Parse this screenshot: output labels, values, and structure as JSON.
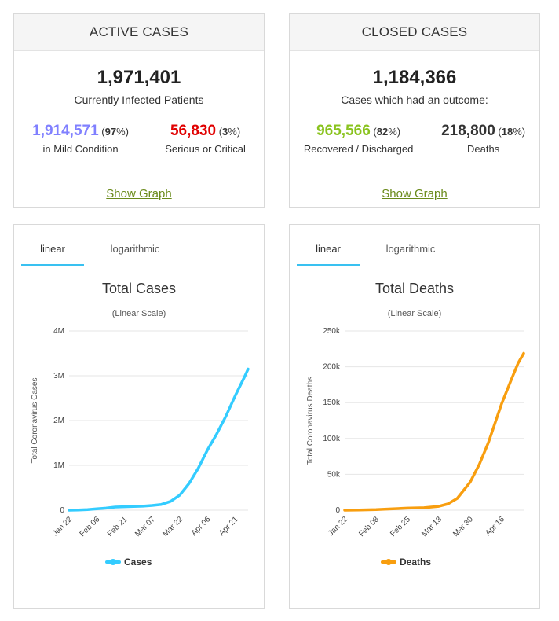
{
  "active": {
    "header": "ACTIVE CASES",
    "total": "1,971,401",
    "caption": "Currently Infected Patients",
    "mild": {
      "number": "1,914,571",
      "pct": "97",
      "caption": "in Mild Condition",
      "color": "#8080ff"
    },
    "serious": {
      "number": "56,830",
      "pct": "3",
      "caption": "Serious or Critical",
      "color": "#e00000"
    },
    "show_graph": "Show Graph"
  },
  "closed": {
    "header": "CLOSED CASES",
    "total": "1,184,366",
    "caption": "Cases which had an outcome:",
    "recovered": {
      "number": "965,566",
      "pct": "82",
      "caption": "Recovered / Discharged",
      "color": "#8ac31f"
    },
    "deaths": {
      "number": "218,800",
      "pct": "18",
      "caption": "Deaths",
      "color": "#333333"
    },
    "show_graph": "Show Graph"
  },
  "tabs": {
    "linear": "linear",
    "logarithmic": "logarithmic"
  },
  "colors": {
    "cases": "#33ccff",
    "deaths": "#f89e0f",
    "tab_active": "#39c1f1",
    "link": "#6a8a1a"
  },
  "chart_data": [
    {
      "type": "line",
      "title": "Total Cases",
      "subtitle": "(Linear Scale)",
      "ylabel": "Total Coronavirus Cases",
      "ylim": [
        0,
        4000000
      ],
      "yticks": [
        0,
        1000000,
        2000000,
        3000000,
        4000000
      ],
      "ytick_labels": [
        "0",
        "1M",
        "2M",
        "3M",
        "4M"
      ],
      "xtick_labels": [
        "Jan 22",
        "Feb 06",
        "Feb 21",
        "Mar 07",
        "Mar 22",
        "Apr 06",
        "Apr 21"
      ],
      "legend": "bottom-center",
      "series": [
        {
          "name": "Cases",
          "color": "#33ccff",
          "x": [
            "Jan 22",
            "Jan 27",
            "Feb 01",
            "Feb 06",
            "Feb 11",
            "Feb 16",
            "Feb 21",
            "Feb 26",
            "Mar 02",
            "Mar 07",
            "Mar 12",
            "Mar 17",
            "Mar 22",
            "Mar 27",
            "Apr 01",
            "Apr 06",
            "Apr 11",
            "Apr 16",
            "Apr 21",
            "Apr 26",
            "Apr 28"
          ],
          "values": [
            600,
            5000,
            14000,
            31000,
            45000,
            71000,
            77000,
            82000,
            90000,
            105000,
            128000,
            197000,
            336000,
            596000,
            935000,
            1346000,
            1700000,
            2100000,
            2550000,
            2970000,
            3150000
          ]
        }
      ]
    },
    {
      "type": "line",
      "title": "Total Deaths",
      "subtitle": "(Linear Scale)",
      "ylabel": "Total Coronavirus Deaths",
      "ylim": [
        0,
        250000
      ],
      "yticks": [
        0,
        50000,
        100000,
        150000,
        200000,
        250000
      ],
      "ytick_labels": [
        "0",
        "50k",
        "100k",
        "150k",
        "200k",
        "250k"
      ],
      "xtick_labels": [
        "Jan 22",
        "Feb 08",
        "Feb 25",
        "Mar 13",
        "Mar 30",
        "Apr 16"
      ],
      "legend": "bottom-center",
      "series": [
        {
          "name": "Deaths",
          "color": "#f89e0f",
          "x": [
            "Jan 22",
            "Jan 30",
            "Feb 08",
            "Feb 16",
            "Feb 25",
            "Mar 05",
            "Mar 13",
            "Mar 18",
            "Mar 23",
            "Mar 30",
            "Apr 04",
            "Apr 09",
            "Apr 16",
            "Apr 21",
            "Apr 25",
            "Apr 28"
          ],
          "values": [
            17,
            200,
            800,
            1700,
            2800,
            3400,
            5400,
            8800,
            16500,
            39000,
            64000,
            95000,
            148000,
            180000,
            205000,
            218800
          ]
        }
      ]
    }
  ]
}
